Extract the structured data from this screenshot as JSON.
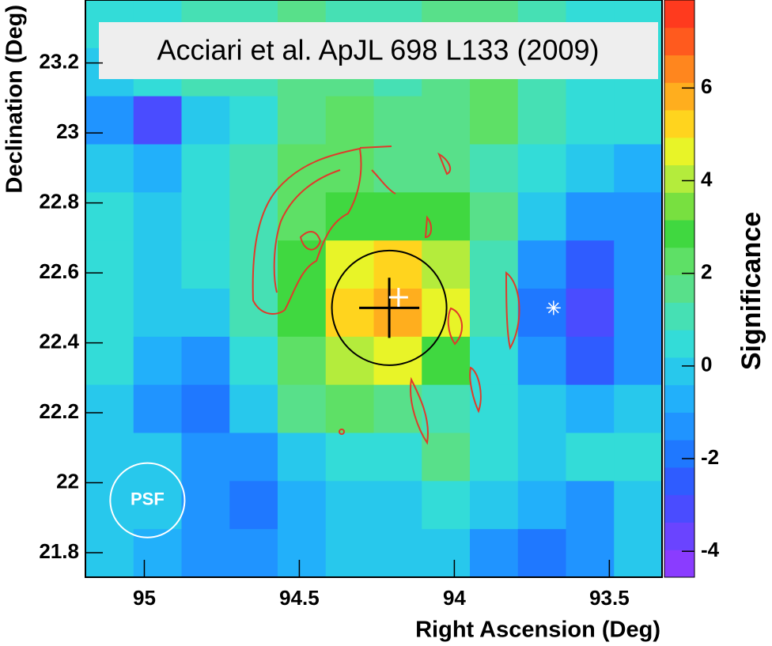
{
  "chart_data": {
    "type": "heatmap",
    "annotation": "Acciari et al. ApJL 698 L133 (2009)",
    "xlabel": "Right Ascension (Deg)",
    "ylabel": "Declination (Deg)",
    "zlabel": "Significance",
    "xlim": [
      95.19,
      93.33
    ],
    "ylim": [
      21.73,
      23.38
    ],
    "zlim": [
      -4.56,
      7.9
    ],
    "xticks": [
      95,
      94.5,
      94,
      93.5
    ],
    "yticks": [
      23.2,
      23,
      22.8,
      22.6,
      22.4,
      22.2,
      22,
      21.8
    ],
    "zticks": [
      -4,
      -2,
      0,
      2,
      4,
      6
    ],
    "xbins": [
      95.19,
      95.035,
      94.88,
      94.725,
      94.57,
      94.415,
      94.26,
      94.105,
      93.95,
      93.795,
      93.64,
      93.485,
      93.33
    ],
    "ybins": [
      23.38,
      23.2425,
      23.105,
      22.9675,
      22.83,
      22.6925,
      22.555,
      22.4175,
      22.28,
      22.1425,
      22.005,
      21.8675,
      21.73
    ],
    "z": [
      [
        0.5,
        0.5,
        1,
        1,
        1.5,
        1,
        1,
        1.5,
        1.5,
        1,
        0.5,
        0.5
      ],
      [
        0,
        0.5,
        1,
        1,
        1.5,
        1.5,
        1,
        1.5,
        2,
        1,
        0.5,
        0.5
      ],
      [
        -1,
        -3,
        0,
        0.5,
        1.5,
        2,
        1.5,
        1.5,
        2.5,
        1,
        0.5,
        0.5
      ],
      [
        0,
        -0.5,
        0.5,
        1,
        2.5,
        2,
        1.5,
        1.5,
        1,
        0.5,
        0,
        -0.5
      ],
      [
        0.5,
        0,
        0.5,
        1,
        2.5,
        3,
        3,
        3,
        1.5,
        0,
        -1,
        -1
      ],
      [
        0.5,
        0,
        0.5,
        1,
        3,
        4.5,
        5.5,
        4,
        1,
        -1.5,
        -2.5,
        -1.5
      ],
      [
        0.5,
        0,
        0,
        1,
        3,
        5,
        6,
        4.5,
        1,
        -2,
        -3,
        -1
      ],
      [
        0.5,
        -0.5,
        -1,
        0.5,
        2.5,
        4,
        4.5,
        3,
        0.5,
        -1.5,
        -2.5,
        -1
      ],
      [
        0,
        -1,
        -2,
        0,
        1.5,
        2,
        1.5,
        1,
        0.5,
        0,
        -0.5,
        0
      ],
      [
        0,
        0,
        -1.5,
        -1,
        0,
        0.5,
        0.5,
        1.5,
        0.5,
        0,
        0.5,
        0.5
      ],
      [
        0,
        0,
        -1,
        -2,
        -0.5,
        0,
        0,
        0.5,
        0,
        -0.5,
        -1,
        0
      ],
      [
        0,
        -0.5,
        -1,
        -1.5,
        -0.5,
        0,
        0,
        0,
        -1,
        -2,
        -1.5,
        0
      ]
    ],
    "colors": [
      "#8a3cff",
      "#6a44ff",
      "#4a4cff",
      "#2f5cff",
      "#1f78ff",
      "#2094ff",
      "#22b0fa",
      "#28c8ec",
      "#33dcd8",
      "#46e0b4",
      "#58e08a",
      "#5ee066",
      "#40d840",
      "#78e040",
      "#b4ec3c",
      "#e8f428",
      "#ffd41e",
      "#ffae1e",
      "#ff861e",
      "#ff5a1e",
      "#ff3a1e"
    ],
    "source_circle": {
      "ra": 94.21,
      "dec": 22.5,
      "radius": 0.185,
      "color": "#000000"
    },
    "centroid": {
      "ra": 94.21,
      "dec": 22.5,
      "ra_err": 0.097,
      "dec_err": 0.086,
      "color": "#000000"
    },
    "white_cross": {
      "ra": 94.18,
      "dec": 22.53,
      "color": "#ffffff"
    },
    "star": {
      "ra": 93.68,
      "dec": 22.5,
      "color": "#ffffff"
    },
    "psf": {
      "label": "PSF",
      "ra": 94.99,
      "dec": 21.95,
      "radius": 0.12,
      "color": "#ffffff"
    }
  }
}
